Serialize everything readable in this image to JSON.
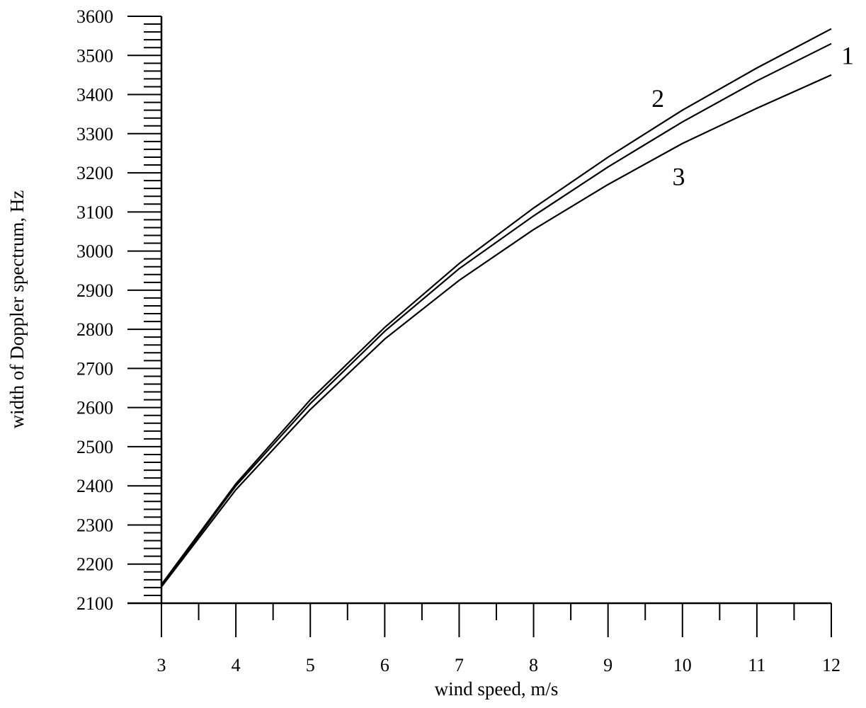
{
  "chart_data": {
    "type": "line",
    "xlabel": "wind speed, m/s",
    "ylabel": "width of Doppler spectrum, Hz",
    "xlim": [
      3,
      12
    ],
    "ylim": [
      2100,
      3600
    ],
    "x_ticks": [
      3,
      4,
      5,
      6,
      7,
      8,
      9,
      10,
      11,
      12
    ],
    "x_minor_step": 0.5,
    "y_ticks": [
      2100,
      2200,
      2300,
      2400,
      2500,
      2600,
      2700,
      2800,
      2900,
      3000,
      3100,
      3200,
      3300,
      3400,
      3500,
      3600
    ],
    "y_minor_step": 20,
    "grid": false,
    "legend": "none",
    "x": [
      3,
      4,
      5,
      6,
      7,
      8,
      9,
      10,
      11,
      12
    ],
    "series": [
      {
        "label": "1",
        "values": [
          2145,
          2400,
          2610,
          2795,
          2955,
          3090,
          3215,
          3330,
          3435,
          3530
        ]
      },
      {
        "label": "2",
        "values": [
          2148,
          2405,
          2620,
          2805,
          2968,
          3110,
          3240,
          3360,
          3468,
          3568
        ]
      },
      {
        "label": "3",
        "values": [
          2142,
          2390,
          2595,
          2775,
          2925,
          3055,
          3170,
          3275,
          3365,
          3450
        ]
      }
    ],
    "curve_label_positions": [
      {
        "label": "1",
        "x": 12.22,
        "y": 3500
      },
      {
        "label": "2",
        "x": 9.67,
        "y": 3390
      },
      {
        "label": "3",
        "x": 9.95,
        "y": 3190
      }
    ]
  }
}
